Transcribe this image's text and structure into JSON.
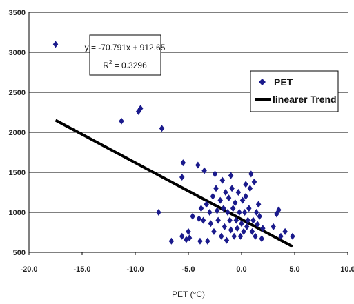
{
  "chart_data": {
    "type": "scatter",
    "xlabel": "PET (°C)",
    "ylabel": "",
    "xlim": [
      -20,
      10
    ],
    "ylim": [
      500,
      3500
    ],
    "xticks": [
      "-20.0",
      "-15.0",
      "-10.0",
      "-5.0",
      "0.0",
      "5.0",
      "10.0"
    ],
    "yticks": [
      "500",
      "1000",
      "1500",
      "2000",
      "2500",
      "3000",
      "3500"
    ],
    "grid": "horizontal",
    "legend_position": "right",
    "colors": {
      "points": "#1a1a8c",
      "trend": "#000000"
    },
    "series": [
      {
        "name": "PET",
        "marker": "diamond",
        "points": [
          [
            -17.5,
            3100
          ],
          [
            -11.3,
            2140
          ],
          [
            -9.7,
            2260
          ],
          [
            -9.5,
            2300
          ],
          [
            -7.5,
            2050
          ],
          [
            -7.8,
            1000
          ],
          [
            -6.6,
            640
          ],
          [
            -5.5,
            1620
          ],
          [
            -5.6,
            1440
          ],
          [
            -5.6,
            700
          ],
          [
            -5.2,
            660
          ],
          [
            -5.0,
            760
          ],
          [
            -4.9,
            680
          ],
          [
            -4.6,
            950
          ],
          [
            -4.1,
            1590
          ],
          [
            -4.0,
            920
          ],
          [
            -3.8,
            1050
          ],
          [
            -3.6,
            900
          ],
          [
            -3.5,
            1520
          ],
          [
            -3.3,
            1100
          ],
          [
            -3.2,
            640
          ],
          [
            -3.0,
            1000
          ],
          [
            -2.9,
            860
          ],
          [
            -2.7,
            1200
          ],
          [
            -2.6,
            760
          ],
          [
            -2.4,
            1300
          ],
          [
            -2.3,
            1020
          ],
          [
            -2.2,
            900
          ],
          [
            -2.0,
            1150
          ],
          [
            -1.9,
            700
          ],
          [
            -1.8,
            1400
          ],
          [
            -1.7,
            1050
          ],
          [
            -1.6,
            820
          ],
          [
            -1.5,
            1250
          ],
          [
            -1.4,
            650
          ],
          [
            -1.3,
            1000
          ],
          [
            -1.2,
            1180
          ],
          [
            -1.1,
            900
          ],
          [
            -1.0,
            780
          ],
          [
            -0.9,
            1300
          ],
          [
            -0.8,
            1050
          ],
          [
            -0.7,
            700
          ],
          [
            -0.6,
            1120
          ],
          [
            -0.5,
            900
          ],
          [
            -0.4,
            800
          ],
          [
            -0.3,
            1250
          ],
          [
            -0.2,
            1000
          ],
          [
            -0.1,
            700
          ],
          [
            0.0,
            860
          ],
          [
            0.1,
            1150
          ],
          [
            0.2,
            760
          ],
          [
            0.3,
            1000
          ],
          [
            0.4,
            1200
          ],
          [
            0.5,
            820
          ],
          [
            0.6,
            900
          ],
          [
            0.7,
            1050
          ],
          [
            0.8,
            1300
          ],
          [
            0.9,
            1480
          ],
          [
            1.0,
            760
          ],
          [
            1.1,
            900
          ],
          [
            1.2,
            1380
          ],
          [
            1.3,
            700
          ],
          [
            1.4,
            1000
          ],
          [
            1.5,
            850
          ],
          [
            1.6,
            1100
          ],
          [
            1.7,
            950
          ],
          [
            1.9,
            670
          ],
          [
            2.0,
            800
          ],
          [
            3.0,
            820
          ],
          [
            3.3,
            980
          ],
          [
            3.5,
            1030
          ],
          [
            3.7,
            700
          ],
          [
            4.1,
            760
          ],
          [
            4.8,
            700
          ],
          [
            -2.5,
            1480
          ],
          [
            -3.9,
            640
          ],
          [
            -1.0,
            1460
          ],
          [
            0.4,
            1350
          ]
        ]
      },
      {
        "name": "linearer Trend",
        "type": "line",
        "points": [
          [
            -17.5,
            2151.5
          ],
          [
            4.8,
            572.9
          ]
        ]
      }
    ],
    "annotations": {
      "equation": "y = -70.791x + 912.65",
      "r2_prefix": "R",
      "r2_sup": "2",
      "r2_value": " = 0.3296"
    }
  }
}
